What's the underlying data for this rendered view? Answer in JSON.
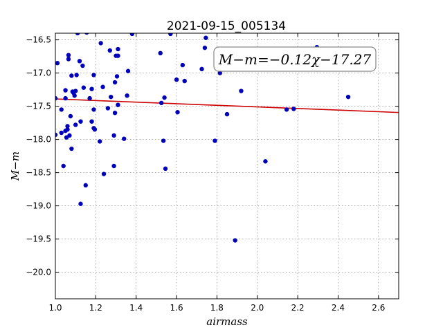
{
  "chart_data": {
    "type": "scatter",
    "title": "2021-09-15_005134",
    "xlabel": "airmass",
    "ylabel": "M−m",
    "xlim": [
      1.0,
      2.7
    ],
    "ylim": [
      -20.4,
      -16.4
    ],
    "y_inverted_axis": "more negative values at bottom",
    "x_ticks": [
      "1.0",
      "1.2",
      "1.4",
      "1.6",
      "1.8",
      "2.0",
      "2.2",
      "2.4",
      "2.6"
    ],
    "y_ticks": [
      "−16.5",
      "−17.0",
      "−17.5",
      "−18.0",
      "−18.5",
      "−19.0",
      "−19.5",
      "−20.0"
    ],
    "grid": true,
    "annotation": "M−m=−0.12χ−17.27",
    "annotation_position": "top-right",
    "fit_line": {
      "slope": -0.12,
      "intercept": -17.27,
      "color": "#cc0000"
    },
    "point_color": "#0000bb",
    "points": [
      [
        1.0,
        -17.38
      ],
      [
        1.0,
        -17.93
      ],
      [
        1.01,
        -16.85
      ],
      [
        1.03,
        -17.55
      ],
      [
        1.03,
        -17.9
      ],
      [
        1.04,
        -18.4
      ],
      [
        1.05,
        -17.26
      ],
      [
        1.05,
        -17.38
      ],
      [
        1.05,
        -17.87
      ],
      [
        1.055,
        -17.97
      ],
      [
        1.06,
        -17.8
      ],
      [
        1.06,
        -17.85
      ],
      [
        1.065,
        -16.73
      ],
      [
        1.065,
        -16.79
      ],
      [
        1.07,
        -17.94
      ],
      [
        1.075,
        -17.65
      ],
      [
        1.08,
        -17.04
      ],
      [
        1.08,
        -18.14
      ],
      [
        1.085,
        -17.28
      ],
      [
        1.09,
        -17.3
      ],
      [
        1.095,
        -17.34
      ],
      [
        1.1,
        -17.78
      ],
      [
        1.1,
        -17.27
      ],
      [
        1.105,
        -17.03
      ],
      [
        1.11,
        -16.4
      ],
      [
        1.12,
        -16.82
      ],
      [
        1.125,
        -17.73
      ],
      [
        1.125,
        -18.97
      ],
      [
        1.135,
        -16.89
      ],
      [
        1.14,
        -17.22
      ],
      [
        1.15,
        -18.69
      ],
      [
        1.155,
        -16.39
      ],
      [
        1.17,
        -17.38
      ],
      [
        1.18,
        -17.24
      ],
      [
        1.18,
        -17.73
      ],
      [
        1.19,
        -17.55
      ],
      [
        1.19,
        -17.83
      ],
      [
        1.19,
        -17.03
      ],
      [
        1.195,
        -17.85
      ],
      [
        1.22,
        -18.03
      ],
      [
        1.225,
        -16.55
      ],
      [
        1.235,
        -17.21
      ],
      [
        1.24,
        -18.52
      ],
      [
        1.26,
        -17.53
      ],
      [
        1.27,
        -16.66
      ],
      [
        1.275,
        -17.36
      ],
      [
        1.29,
        -17.94
      ],
      [
        1.29,
        -18.4
      ],
      [
        1.295,
        -17.14
      ],
      [
        1.295,
        -17.6
      ],
      [
        1.3,
        -16.74
      ],
      [
        1.305,
        -17.05
      ],
      [
        1.31,
        -16.64
      ],
      [
        1.31,
        -16.74
      ],
      [
        1.31,
        -17.48
      ],
      [
        1.34,
        -17.99
      ],
      [
        1.355,
        -17.34
      ],
      [
        1.36,
        -16.97
      ],
      [
        1.38,
        -16.41
      ],
      [
        1.52,
        -16.7
      ],
      [
        1.525,
        -17.45
      ],
      [
        1.535,
        -18.02
      ],
      [
        1.54,
        -17.37
      ],
      [
        1.545,
        -18.44
      ],
      [
        1.57,
        -16.41
      ],
      [
        1.6,
        -17.1
      ],
      [
        1.605,
        -17.59
      ],
      [
        1.63,
        -16.88
      ],
      [
        1.64,
        -17.12
      ],
      [
        1.725,
        -16.94
      ],
      [
        1.74,
        -16.62
      ],
      [
        1.745,
        -16.47
      ],
      [
        1.79,
        -18.02
      ],
      [
        1.815,
        -17.0
      ],
      [
        1.85,
        -17.62
      ],
      [
        1.89,
        -19.52
      ],
      [
        1.92,
        -17.27
      ],
      [
        2.04,
        -18.33
      ],
      [
        2.145,
        -17.55
      ],
      [
        2.18,
        -17.54
      ],
      [
        2.295,
        -16.61
      ],
      [
        2.45,
        -17.36
      ]
    ]
  }
}
